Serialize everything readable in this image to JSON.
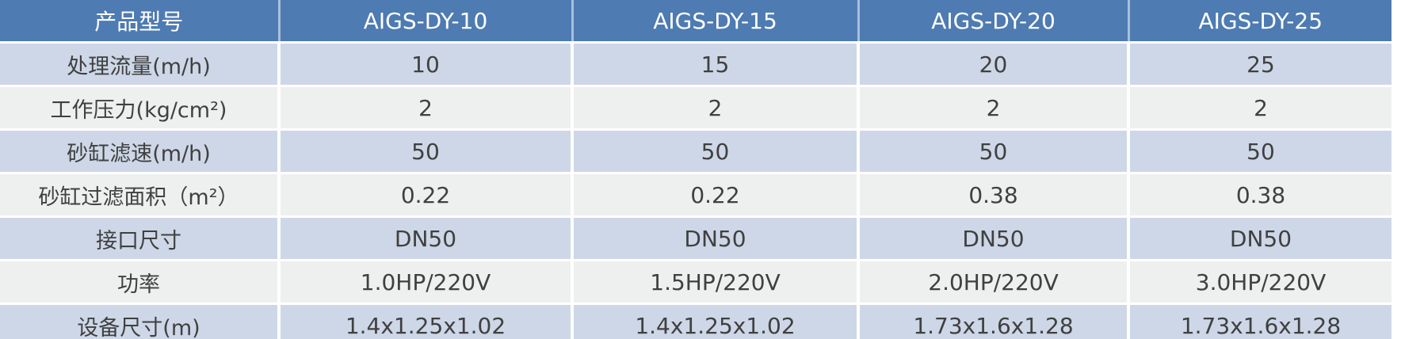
{
  "table": {
    "header": {
      "label": "产品型号",
      "models": [
        "AIGS-DY-10",
        "AIGS-DY-15",
        "AIGS-DY-20",
        "AIGS-DY-25"
      ]
    },
    "rows": [
      {
        "label": "处理流量(m/h)",
        "values": [
          "10",
          "15",
          "20",
          "25"
        ]
      },
      {
        "label": "工作压力(kg/cm²)",
        "values": [
          "2",
          "2",
          "2",
          "2"
        ]
      },
      {
        "label": "砂缸滤速(m/h)",
        "values": [
          "50",
          "50",
          "50",
          "50"
        ]
      },
      {
        "label": "砂缸过滤面积（m²）",
        "values": [
          "0.22",
          "0.22",
          "0.38",
          "0.38"
        ]
      },
      {
        "label": "接口尺寸",
        "values": [
          "DN50",
          "DN50",
          "DN50",
          "DN50"
        ]
      },
      {
        "label": "功率",
        "values": [
          "1.0HP/220V",
          "1.5HP/220V",
          "2.0HP/220V",
          "3.0HP/220V"
        ]
      },
      {
        "label": "设备尺寸(m)",
        "values": [
          "1.4x1.25x1.02",
          "1.4x1.25x1.02",
          "1.73x1.6x1.28",
          "1.73x1.6x1.28"
        ]
      }
    ],
    "colors": {
      "header_bg": "#4e7bb1",
      "header_divider": "#a8bfdb",
      "band_blue": "#cdd7e7",
      "band_gray": "#eeefef",
      "body_text": "#404040",
      "header_text": "#ffffff",
      "separator": "#ffffff"
    }
  }
}
